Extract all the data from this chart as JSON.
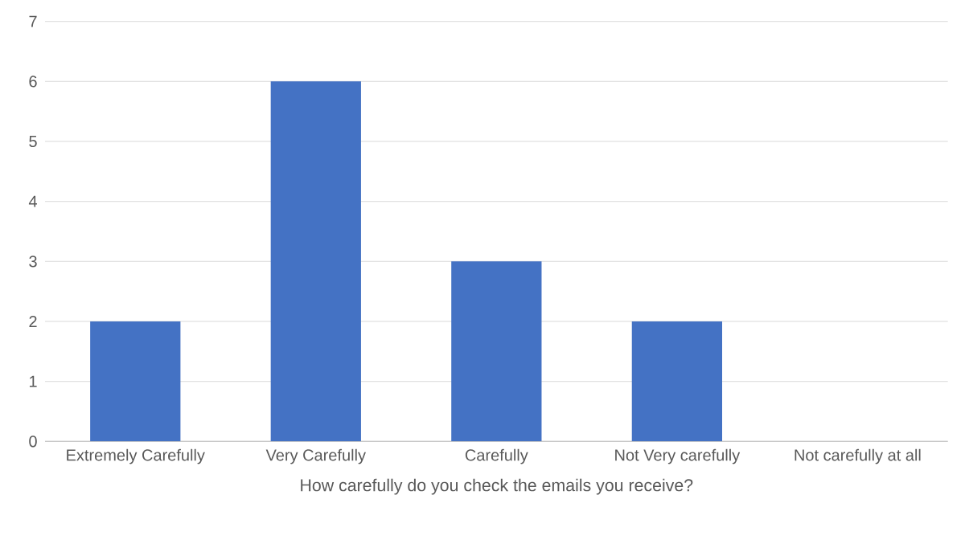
{
  "chart_data": {
    "type": "bar",
    "xlabel": "How carefully do you check the emails you receive?",
    "categories": [
      "Extremely Carefully",
      "Very Carefully",
      "Carefully",
      "Not Very carefully",
      "Not carefully at all"
    ],
    "values": [
      2,
      6,
      3,
      2,
      0
    ],
    "color": "#4472c4",
    "ylim": [
      0,
      7
    ],
    "yticks": [
      0,
      1,
      2,
      3,
      4,
      5,
      6,
      7
    ],
    "grid": "y"
  }
}
